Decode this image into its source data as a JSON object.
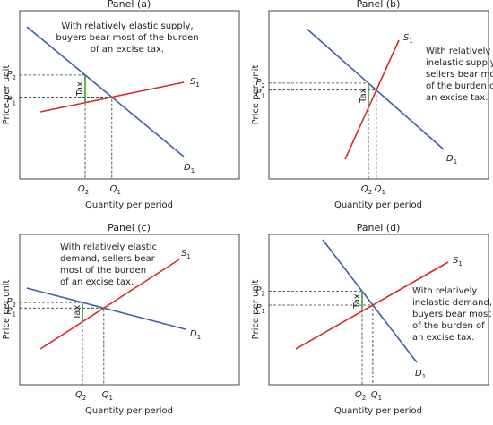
{
  "panels": [
    {
      "title": "Panel (a)",
      "annotation": [
        "With relatively elastic supply,",
        "buyers bear most of the burden",
        "of an excise tax."
      ],
      "supply": {
        "base": "S",
        "sub": "1"
      },
      "demand": {
        "base": "D",
        "sub": "1"
      },
      "p2": {
        "base": "P",
        "sub": "2"
      },
      "p1": {
        "base": "P",
        "sub": "1"
      },
      "q2": {
        "base": "Q",
        "sub": "2"
      },
      "q1": {
        "base": "Q",
        "sub": "1"
      },
      "tax": "Tax",
      "y_axis": "Price per unit",
      "x_axis": "Quantity per period"
    },
    {
      "title": "Panel (b)",
      "annotation": [
        "With relatively",
        "inelastic supply,",
        "sellers bear most",
        "of the burden of",
        "an excise tax."
      ],
      "supply": {
        "base": "S",
        "sub": "1"
      },
      "demand": {
        "base": "D",
        "sub": "1"
      },
      "p2": {
        "base": "P",
        "sub": "2"
      },
      "p1": {
        "base": "P",
        "sub": "1"
      },
      "q2": {
        "base": "Q",
        "sub": "2"
      },
      "q1": {
        "base": "Q",
        "sub": "1"
      },
      "tax": "Tax",
      "y_axis": "Price per unit",
      "x_axis": "Quantity per period"
    },
    {
      "title": "Panel (c)",
      "annotation": [
        "With relatively elastic",
        "demand, sellers bear",
        "most of the burden",
        "of an excise tax."
      ],
      "supply": {
        "base": "S",
        "sub": "1"
      },
      "demand": {
        "base": "D",
        "sub": "1"
      },
      "p2": {
        "base": "P",
        "sub": "2"
      },
      "p1": {
        "base": "P",
        "sub": "1"
      },
      "q2": {
        "base": "Q",
        "sub": "2"
      },
      "q1": {
        "base": "Q",
        "sub": "1"
      },
      "tax": "Tax",
      "y_axis": "Price per unit",
      "x_axis": "Quantity per period"
    },
    {
      "title": "Panel (d)",
      "annotation": [
        "With relatively",
        "inelastic demand,",
        "buyers bear most",
        "of the burden of",
        "an excise tax."
      ],
      "supply": {
        "base": "S",
        "sub": "1"
      },
      "demand": {
        "base": "D",
        "sub": "1"
      },
      "p2": {
        "base": "P",
        "sub": "2"
      },
      "p1": {
        "base": "P",
        "sub": "1"
      },
      "q2": {
        "base": "Q",
        "sub": "2"
      },
      "q1": {
        "base": "Q",
        "sub": "1"
      },
      "tax": "Tax",
      "y_axis": "Price per unit",
      "x_axis": "Quantity per period"
    }
  ]
}
